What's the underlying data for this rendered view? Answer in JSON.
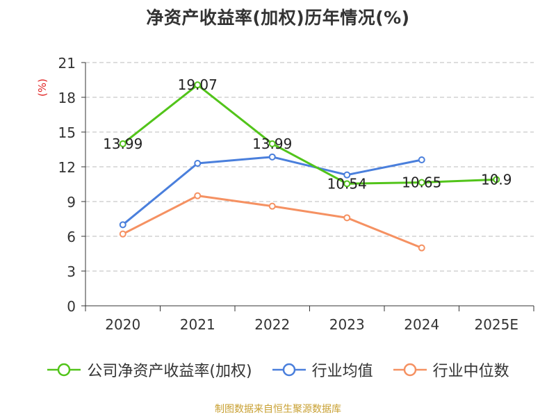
{
  "chart_data": {
    "type": "line",
    "title": "净资产收益率(加权)历年情况(%)",
    "ylabel": "(%)",
    "xlabel": "",
    "categories": [
      "2020",
      "2021",
      "2022",
      "2023",
      "2024",
      "2025E"
    ],
    "ylim": [
      0,
      21
    ],
    "yticks": [
      0,
      3,
      6,
      9,
      12,
      15,
      18,
      21
    ],
    "grid": "horizontal-dashed",
    "legend_position": "bottom",
    "series": [
      {
        "name": "公司净资产收益率(加权)",
        "color": "#52c41a",
        "values": [
          13.99,
          19.07,
          13.99,
          10.54,
          10.65,
          10.9
        ],
        "labels": [
          "13.99",
          "19.07",
          "13.99",
          "10.54",
          "10.65",
          "10.9"
        ],
        "show_labels": true
      },
      {
        "name": "行业均值",
        "color": "#4a7fdc",
        "values": [
          7.0,
          12.3,
          12.85,
          11.3,
          12.6,
          null
        ],
        "show_labels": false
      },
      {
        "name": "行业中位数",
        "color": "#f59162",
        "values": [
          6.2,
          9.5,
          8.6,
          7.6,
          5.0,
          null
        ],
        "show_labels": false
      }
    ]
  },
  "source_note": "制图数据来自恒生聚源数据库",
  "colors": {
    "axis": "#333333",
    "grid": "#bbbbbb",
    "ylabel": "#e02020",
    "source": "#c8a032"
  }
}
